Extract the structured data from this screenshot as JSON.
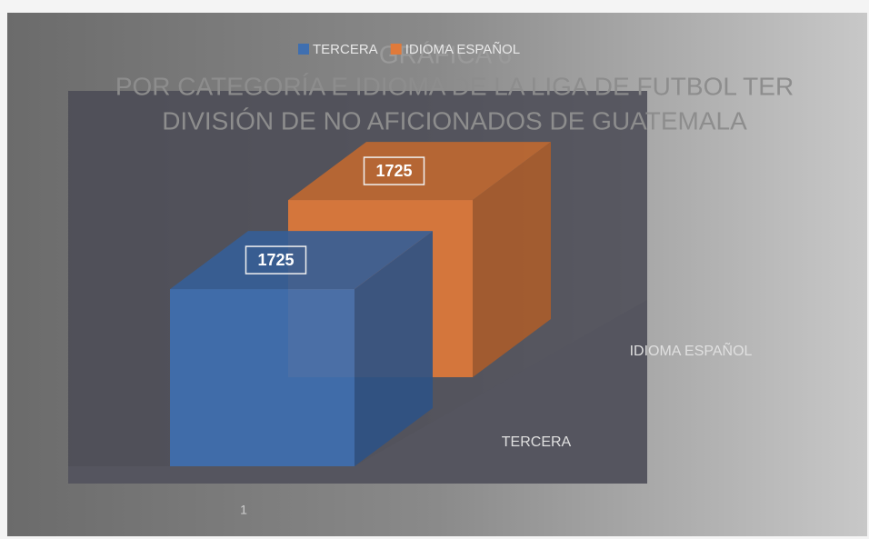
{
  "chart_data": {
    "type": "bar3d",
    "title": "GRÁFICA 6",
    "subtitle": [
      "POR CATEGORÍA E IDIOMA DE LA LIGA DE FUTBOL TER",
      "DIVISIÓN DE NO AFICIONADOS DE GUATEMALA"
    ],
    "categories": [
      "1"
    ],
    "series": [
      {
        "name": "TERCERA",
        "color": "#3f6fb0",
        "values": [
          1725
        ]
      },
      {
        "name": "IDIOMA ESPAÑOL",
        "color": "#e07a3a",
        "values": [
          1725
        ]
      }
    ],
    "ylim": [
      0,
      2000
    ],
    "legend": "top"
  }
}
